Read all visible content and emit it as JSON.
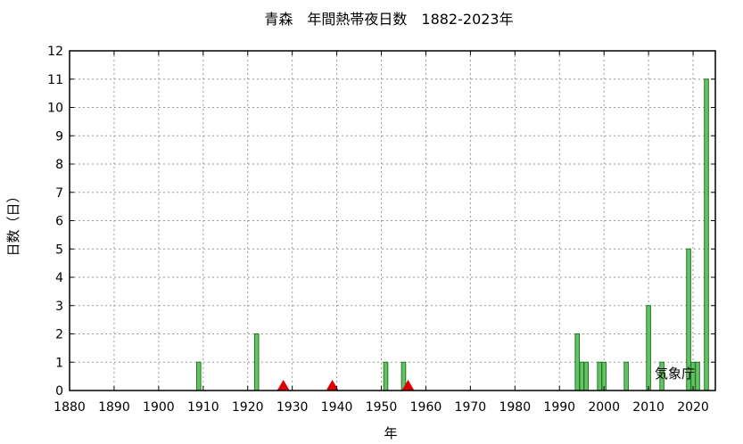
{
  "chart_data": {
    "type": "bar",
    "title": "青森　年間熱帯夜日数　1882-2023年",
    "xlabel": "年",
    "ylabel": "日数（日）",
    "credit": "気象庁",
    "xlim": [
      1880,
      2025
    ],
    "ylim": [
      0,
      12
    ],
    "xticks": [
      1880,
      1890,
      1900,
      1910,
      1920,
      1930,
      1940,
      1950,
      1960,
      1970,
      1980,
      1990,
      2000,
      2010,
      2020
    ],
    "yticks": [
      0,
      1,
      2,
      3,
      4,
      5,
      6,
      7,
      8,
      9,
      10,
      11,
      12
    ],
    "grid": true,
    "bars": [
      {
        "x": 1909,
        "y": 1
      },
      {
        "x": 1922,
        "y": 2
      },
      {
        "x": 1951,
        "y": 1
      },
      {
        "x": 1955,
        "y": 1
      },
      {
        "x": 1994,
        "y": 2
      },
      {
        "x": 1995,
        "y": 1
      },
      {
        "x": 1996,
        "y": 1
      },
      {
        "x": 1999,
        "y": 1
      },
      {
        "x": 2000,
        "y": 1
      },
      {
        "x": 2005,
        "y": 1
      },
      {
        "x": 2010,
        "y": 3
      },
      {
        "x": 2013,
        "y": 1
      },
      {
        "x": 2019,
        "y": 5
      },
      {
        "x": 2020,
        "y": 1
      },
      {
        "x": 2021,
        "y": 1
      },
      {
        "x": 2023,
        "y": 11
      }
    ],
    "markers": [
      {
        "x": 1928
      },
      {
        "x": 1939
      },
      {
        "x": 1956
      }
    ],
    "colors": {
      "bar_fill": "#66c266",
      "bar_stroke": "#1f7a1f",
      "marker": "#dd0000"
    }
  }
}
